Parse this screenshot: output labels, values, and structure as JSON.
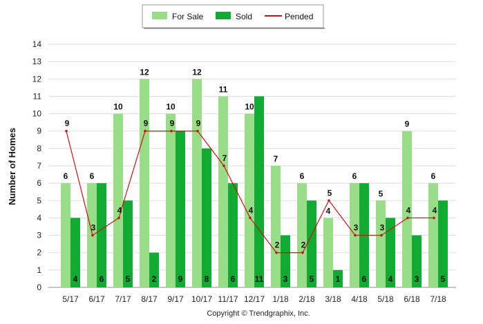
{
  "chart_data": {
    "type": "bar",
    "categories": [
      "5/17",
      "6/17",
      "7/17",
      "8/17",
      "9/17",
      "10/17",
      "11/17",
      "12/17",
      "1/18",
      "2/18",
      "3/18",
      "4/18",
      "5/18",
      "6/18",
      "7/18"
    ],
    "series": [
      {
        "name": "For Sale",
        "kind": "bar",
        "color": "#99dd88",
        "values": [
          6,
          6,
          10,
          12,
          10,
          12,
          11,
          10,
          7,
          6,
          4,
          6,
          5,
          9,
          6
        ]
      },
      {
        "name": "Sold",
        "kind": "bar",
        "color": "#11aa33",
        "values": [
          4,
          6,
          5,
          2,
          9,
          8,
          6,
          11,
          3,
          5,
          1,
          6,
          4,
          3,
          5
        ]
      },
      {
        "name": "Pended",
        "kind": "line",
        "color": "#cc1111",
        "values": [
          9,
          3,
          4,
          9,
          9,
          9,
          7,
          4,
          2,
          2,
          5,
          3,
          3,
          4,
          4
        ]
      }
    ],
    "ylabel": "Number of Homes",
    "xlabel": "",
    "ylim": [
      0,
      14
    ],
    "yticks": [
      0,
      1,
      2,
      3,
      4,
      5,
      6,
      7,
      8,
      9,
      10,
      11,
      12,
      13,
      14
    ],
    "grid": true,
    "legend_position": "top-center",
    "footer": "Copyright © Trendgraphix, Inc."
  }
}
